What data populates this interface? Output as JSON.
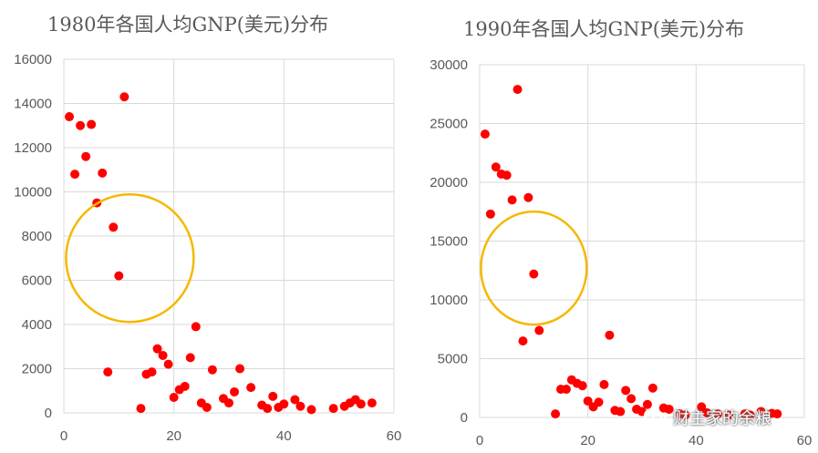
{
  "chart_data": [
    {
      "type": "scatter",
      "title": "1980年各国人均GNP(美元)分布",
      "xlim": [
        0,
        60
      ],
      "ylim": [
        0,
        16000
      ],
      "xticks": [
        0,
        20,
        40,
        60
      ],
      "yticks": [
        0,
        2000,
        4000,
        6000,
        8000,
        10000,
        12000,
        14000,
        16000
      ],
      "grid": true,
      "points": [
        [
          1,
          13400
        ],
        [
          2,
          10800
        ],
        [
          3,
          13000
        ],
        [
          4,
          11600
        ],
        [
          5,
          13050
        ],
        [
          6,
          9500
        ],
        [
          7,
          10850
        ],
        [
          8,
          1850
        ],
        [
          9,
          8400
        ],
        [
          10,
          6200
        ],
        [
          11,
          14300
        ],
        [
          14,
          200
        ],
        [
          15,
          1750
        ],
        [
          16,
          1850
        ],
        [
          17,
          2900
        ],
        [
          18,
          2600
        ],
        [
          19,
          2200
        ],
        [
          20,
          700
        ],
        [
          21,
          1050
        ],
        [
          22,
          1200
        ],
        [
          23,
          2500
        ],
        [
          24,
          3900
        ],
        [
          25,
          450
        ],
        [
          26,
          250
        ],
        [
          27,
          1950
        ],
        [
          29,
          650
        ],
        [
          30,
          450
        ],
        [
          31,
          950
        ],
        [
          32,
          2000
        ],
        [
          34,
          1150
        ],
        [
          36,
          350
        ],
        [
          37,
          200
        ],
        [
          38,
          750
        ],
        [
          39,
          250
        ],
        [
          40,
          400
        ],
        [
          42,
          600
        ],
        [
          43,
          300
        ],
        [
          45,
          150
        ],
        [
          49,
          200
        ],
        [
          51,
          300
        ],
        [
          52,
          450
        ],
        [
          53,
          600
        ],
        [
          54,
          400
        ],
        [
          56,
          450
        ]
      ],
      "highlight": {
        "x": 12,
        "y": 7000
      }
    },
    {
      "type": "scatter",
      "title": "1990年各国人均GNP(美元)分布",
      "xlim": [
        0,
        60
      ],
      "ylim": [
        0,
        30000
      ],
      "xticks": [
        0,
        20,
        40,
        60
      ],
      "yticks": [
        0,
        5000,
        10000,
        15000,
        20000,
        25000,
        30000
      ],
      "grid": true,
      "points": [
        [
          1,
          24100
        ],
        [
          2,
          17300
        ],
        [
          3,
          21300
        ],
        [
          4,
          20700
        ],
        [
          5,
          20600
        ],
        [
          6,
          18500
        ],
        [
          7,
          27900
        ],
        [
          8,
          6500
        ],
        [
          9,
          18700
        ],
        [
          10,
          12200
        ],
        [
          11,
          7400
        ],
        [
          14,
          300
        ],
        [
          15,
          2400
        ],
        [
          16,
          2400
        ],
        [
          17,
          3200
        ],
        [
          18,
          2900
        ],
        [
          19,
          2700
        ],
        [
          20,
          1400
        ],
        [
          21,
          900
        ],
        [
          22,
          1300
        ],
        [
          23,
          2800
        ],
        [
          24,
          7000
        ],
        [
          25,
          600
        ],
        [
          26,
          500
        ],
        [
          27,
          2300
        ],
        [
          28,
          1600
        ],
        [
          29,
          700
        ],
        [
          30,
          500
        ],
        [
          31,
          1100
        ],
        [
          32,
          2500
        ],
        [
          34,
          800
        ],
        [
          35,
          700
        ],
        [
          37,
          300
        ],
        [
          38,
          200
        ],
        [
          41,
          900
        ],
        [
          42,
          400
        ],
        [
          44,
          300
        ],
        [
          46,
          200
        ],
        [
          49,
          300
        ],
        [
          50,
          200
        ],
        [
          52,
          500
        ],
        [
          54,
          350
        ],
        [
          55,
          300
        ]
      ],
      "highlight": {
        "x": 10,
        "y": 12700
      }
    }
  ],
  "watermark": {
    "text": "财主家的余粮"
  }
}
